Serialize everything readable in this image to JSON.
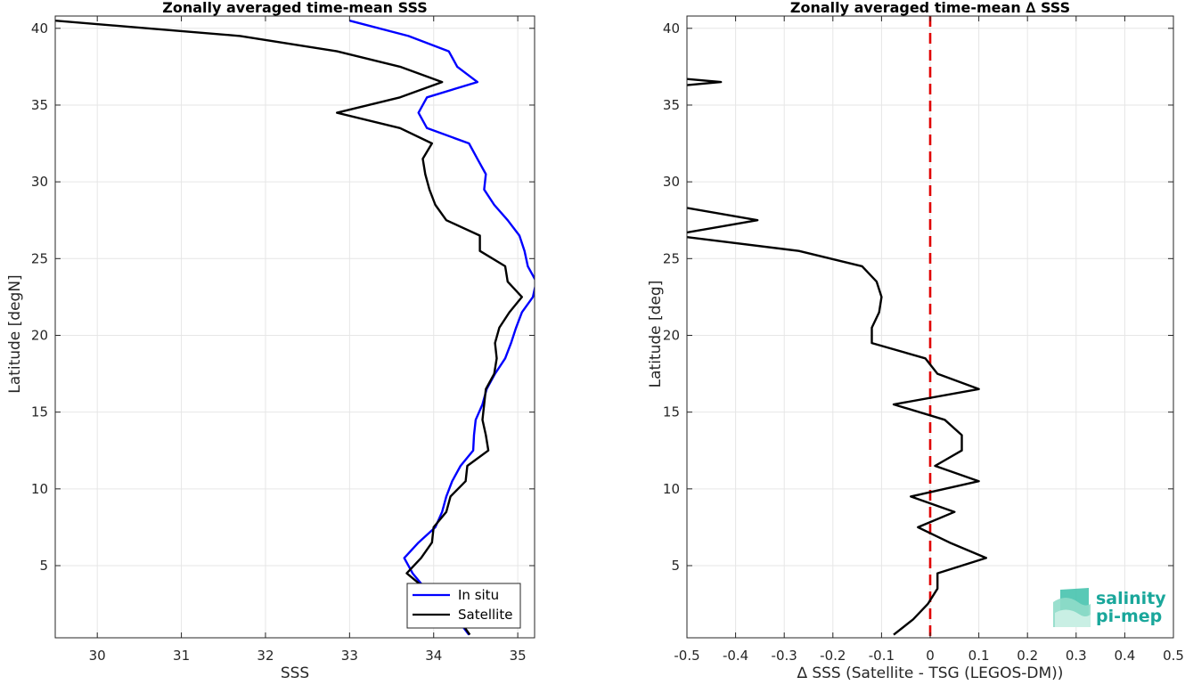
{
  "chart_data": [
    {
      "type": "line",
      "title": "Zonally averaged time-mean SSS",
      "xlabel": "SSS",
      "ylabel": "Latitude [degN]",
      "xlim": [
        29.5,
        35.2
      ],
      "ylim": [
        0.3,
        40.8
      ],
      "xticks": [
        30,
        31,
        32,
        33,
        34,
        35
      ],
      "yticks": [
        5,
        10,
        15,
        20,
        25,
        30,
        35,
        40
      ],
      "grid": true,
      "legend_position": "bottom-right",
      "series": [
        {
          "name": "In situ",
          "color": "#0000ff",
          "points": [
            [
              33.0,
              40.5
            ],
            [
              33.7,
              39.5
            ],
            [
              34.18,
              38.5
            ],
            [
              34.28,
              37.5
            ],
            [
              34.52,
              36.5
            ],
            [
              33.92,
              35.5
            ],
            [
              33.82,
              34.5
            ],
            [
              33.92,
              33.5
            ],
            [
              34.42,
              32.5
            ],
            [
              34.52,
              31.5
            ],
            [
              34.62,
              30.5
            ],
            [
              34.6,
              29.5
            ],
            [
              34.72,
              28.5
            ],
            [
              34.88,
              27.5
            ],
            [
              35.02,
              26.5
            ],
            [
              35.08,
              25.5
            ],
            [
              35.12,
              24.5
            ],
            [
              35.22,
              23.5
            ],
            [
              35.18,
              22.5
            ],
            [
              35.05,
              21.5
            ],
            [
              34.98,
              20.5
            ],
            [
              34.92,
              19.5
            ],
            [
              34.85,
              18.5
            ],
            [
              34.73,
              17.5
            ],
            [
              34.63,
              16.5
            ],
            [
              34.58,
              15.5
            ],
            [
              34.5,
              14.5
            ],
            [
              34.48,
              13.5
            ],
            [
              34.47,
              12.5
            ],
            [
              34.32,
              11.5
            ],
            [
              34.22,
              10.5
            ],
            [
              34.15,
              9.5
            ],
            [
              34.1,
              8.5
            ],
            [
              34.02,
              7.5
            ],
            [
              33.82,
              6.5
            ],
            [
              33.65,
              5.5
            ],
            [
              33.75,
              4.5
            ],
            [
              33.9,
              3.5
            ],
            [
              34.12,
              2.5
            ],
            [
              34.28,
              1.5
            ],
            [
              34.42,
              0.5
            ]
          ]
        },
        {
          "name": "Satellite",
          "color": "#000000",
          "points": [
            [
              29.5,
              40.5
            ],
            [
              30.6,
              40.0
            ],
            [
              31.7,
              39.5
            ],
            [
              32.85,
              38.5
            ],
            [
              33.6,
              37.5
            ],
            [
              34.1,
              36.5
            ],
            [
              33.6,
              35.5
            ],
            [
              32.85,
              34.5
            ],
            [
              33.6,
              33.5
            ],
            [
              33.98,
              32.5
            ],
            [
              33.87,
              31.5
            ],
            [
              33.9,
              30.5
            ],
            [
              33.95,
              29.5
            ],
            [
              34.02,
              28.5
            ],
            [
              34.15,
              27.5
            ],
            [
              34.55,
              26.5
            ],
            [
              34.55,
              25.5
            ],
            [
              34.85,
              24.5
            ],
            [
              34.88,
              23.5
            ],
            [
              35.05,
              22.5
            ],
            [
              34.9,
              21.5
            ],
            [
              34.78,
              20.5
            ],
            [
              34.73,
              19.5
            ],
            [
              34.75,
              18.5
            ],
            [
              34.72,
              17.5
            ],
            [
              34.62,
              16.5
            ],
            [
              34.6,
              15.5
            ],
            [
              34.58,
              14.5
            ],
            [
              34.62,
              13.5
            ],
            [
              34.65,
              12.5
            ],
            [
              34.4,
              11.5
            ],
            [
              34.38,
              10.5
            ],
            [
              34.2,
              9.5
            ],
            [
              34.15,
              8.5
            ],
            [
              34.0,
              7.5
            ],
            [
              33.98,
              6.5
            ],
            [
              33.85,
              5.5
            ],
            [
              33.68,
              4.5
            ],
            [
              33.9,
              3.5
            ],
            [
              34.1,
              2.5
            ],
            [
              34.3,
              1.5
            ],
            [
              34.43,
              0.5
            ]
          ]
        }
      ]
    },
    {
      "type": "line",
      "title": "Zonally averaged time-mean ∆ SSS",
      "xlabel": "∆ SSS (Satellite - TSG (LEGOS-DM))",
      "ylabel": "Latitude [deg]",
      "xlim": [
        -0.5,
        0.5
      ],
      "ylim": [
        0.3,
        40.8
      ],
      "xticks": [
        -0.5,
        -0.4,
        -0.3,
        -0.2,
        -0.1,
        0,
        0.1,
        0.2,
        0.3,
        0.4,
        0.5
      ],
      "yticks": [
        5,
        10,
        15,
        20,
        25,
        30,
        35,
        40
      ],
      "grid": true,
      "reference_line": {
        "x": 0,
        "color": "#e00000",
        "style": "dashed"
      },
      "series": [
        {
          "color": "#000000",
          "segments": [
            [
              [
                -0.5,
                36.7
              ],
              [
                -0.43,
                36.5
              ],
              [
                -0.5,
                36.3
              ]
            ],
            [
              [
                -0.5,
                28.3
              ],
              [
                -0.355,
                27.5
              ],
              [
                -0.5,
                26.7
              ]
            ],
            [
              [
                -0.5,
                26.4
              ],
              [
                -0.27,
                25.5
              ],
              [
                -0.14,
                24.5
              ],
              [
                -0.11,
                23.5
              ],
              [
                -0.1,
                22.5
              ],
              [
                -0.105,
                21.5
              ],
              [
                -0.12,
                20.5
              ],
              [
                -0.12,
                19.5
              ],
              [
                -0.01,
                18.5
              ],
              [
                0.015,
                17.5
              ],
              [
                0.1,
                16.5
              ],
              [
                -0.075,
                15.5
              ],
              [
                0.03,
                14.5
              ],
              [
                0.065,
                13.5
              ],
              [
                0.065,
                12.5
              ],
              [
                0.01,
                11.5
              ],
              [
                0.1,
                10.5
              ],
              [
                -0.04,
                9.5
              ],
              [
                0.05,
                8.5
              ],
              [
                -0.025,
                7.5
              ],
              [
                0.04,
                6.5
              ],
              [
                0.115,
                5.5
              ],
              [
                0.015,
                4.5
              ],
              [
                0.015,
                3.5
              ],
              [
                -0.005,
                2.5
              ],
              [
                -0.035,
                1.5
              ],
              [
                -0.075,
                0.5
              ]
            ]
          ]
        }
      ]
    }
  ],
  "logo": {
    "line1": "salinity",
    "line2": "pi-mep",
    "color": "#1aa79b"
  }
}
